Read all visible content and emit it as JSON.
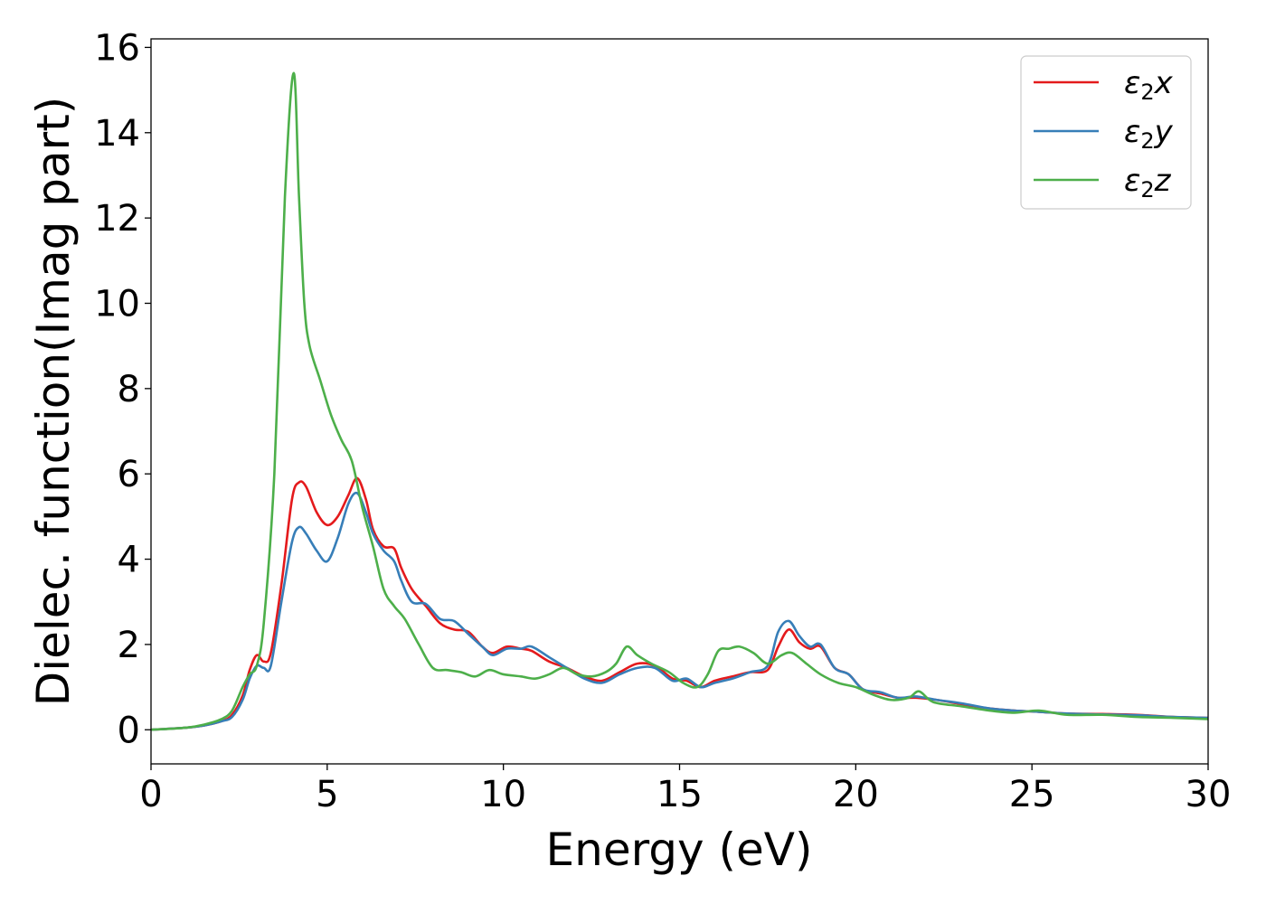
{
  "chart_data": {
    "type": "line",
    "title": "",
    "xlabel": "Energy (eV)",
    "ylabel": "Dielec. function(Imag part)",
    "xlim": [
      0,
      30
    ],
    "ylim": [
      -0.8,
      16.2
    ],
    "xticks": [
      0,
      5,
      10,
      15,
      20,
      25,
      30
    ],
    "yticks": [
      0,
      2,
      4,
      6,
      8,
      10,
      12,
      14,
      16
    ],
    "grid": false,
    "legend_position": "top-right",
    "series": [
      {
        "name": "ε₂x",
        "legend_base": "ε",
        "legend_sub": "2",
        "legend_suffix": "x",
        "color": "#e41a1c",
        "points": [
          [
            0,
            0
          ],
          [
            1,
            0.05
          ],
          [
            1.5,
            0.1
          ],
          [
            2,
            0.2
          ],
          [
            2.3,
            0.35
          ],
          [
            2.6,
            0.8
          ],
          [
            2.8,
            1.4
          ],
          [
            3,
            1.75
          ],
          [
            3.2,
            1.6
          ],
          [
            3.4,
            1.8
          ],
          [
            3.7,
            3.4
          ],
          [
            4,
            5.4
          ],
          [
            4.2,
            5.8
          ],
          [
            4.4,
            5.7
          ],
          [
            4.7,
            5.1
          ],
          [
            5,
            4.8
          ],
          [
            5.3,
            5.0
          ],
          [
            5.6,
            5.5
          ],
          [
            5.85,
            5.9
          ],
          [
            6.1,
            5.4
          ],
          [
            6.3,
            4.7
          ],
          [
            6.6,
            4.3
          ],
          [
            6.9,
            4.25
          ],
          [
            7.1,
            3.8
          ],
          [
            7.4,
            3.3
          ],
          [
            7.8,
            2.9
          ],
          [
            8.2,
            2.5
          ],
          [
            8.6,
            2.35
          ],
          [
            9,
            2.3
          ],
          [
            9.4,
            1.95
          ],
          [
            9.7,
            1.8
          ],
          [
            10.1,
            1.95
          ],
          [
            10.5,
            1.9
          ],
          [
            10.8,
            1.85
          ],
          [
            11.3,
            1.6
          ],
          [
            11.8,
            1.45
          ],
          [
            12.3,
            1.25
          ],
          [
            12.8,
            1.15
          ],
          [
            13.3,
            1.35
          ],
          [
            13.8,
            1.55
          ],
          [
            14.3,
            1.5
          ],
          [
            14.8,
            1.2
          ],
          [
            15.2,
            1.15
          ],
          [
            15.6,
            1.0
          ],
          [
            16,
            1.15
          ],
          [
            16.5,
            1.25
          ],
          [
            17,
            1.35
          ],
          [
            17.5,
            1.4
          ],
          [
            17.8,
            1.95
          ],
          [
            18.1,
            2.35
          ],
          [
            18.4,
            2.05
          ],
          [
            18.7,
            1.9
          ],
          [
            19,
            1.95
          ],
          [
            19.4,
            1.45
          ],
          [
            19.8,
            1.3
          ],
          [
            20.2,
            0.95
          ],
          [
            20.7,
            0.85
          ],
          [
            21.2,
            0.75
          ],
          [
            21.7,
            0.75
          ],
          [
            22.3,
            0.7
          ],
          [
            23,
            0.6
          ],
          [
            23.8,
            0.5
          ],
          [
            24.5,
            0.45
          ],
          [
            25.2,
            0.42
          ],
          [
            26,
            0.38
          ],
          [
            27,
            0.37
          ],
          [
            28,
            0.35
          ],
          [
            29,
            0.3
          ],
          [
            30,
            0.28
          ]
        ]
      },
      {
        "name": "ε₂y",
        "legend_base": "ε",
        "legend_sub": "2",
        "legend_suffix": "y",
        "color": "#377eb8",
        "points": [
          [
            0,
            0
          ],
          [
            1,
            0.05
          ],
          [
            1.5,
            0.1
          ],
          [
            2,
            0.2
          ],
          [
            2.3,
            0.3
          ],
          [
            2.6,
            0.7
          ],
          [
            2.8,
            1.2
          ],
          [
            3,
            1.5
          ],
          [
            3.2,
            1.45
          ],
          [
            3.4,
            1.5
          ],
          [
            3.7,
            3.0
          ],
          [
            4,
            4.4
          ],
          [
            4.2,
            4.75
          ],
          [
            4.4,
            4.6
          ],
          [
            4.7,
            4.2
          ],
          [
            5,
            3.95
          ],
          [
            5.3,
            4.5
          ],
          [
            5.6,
            5.3
          ],
          [
            5.85,
            5.55
          ],
          [
            6.1,
            5.1
          ],
          [
            6.3,
            4.6
          ],
          [
            6.6,
            4.2
          ],
          [
            6.9,
            3.95
          ],
          [
            7.1,
            3.5
          ],
          [
            7.4,
            3.0
          ],
          [
            7.8,
            2.95
          ],
          [
            8.2,
            2.6
          ],
          [
            8.6,
            2.55
          ],
          [
            9,
            2.25
          ],
          [
            9.4,
            1.95
          ],
          [
            9.7,
            1.75
          ],
          [
            10.1,
            1.9
          ],
          [
            10.5,
            1.9
          ],
          [
            10.8,
            1.95
          ],
          [
            11.3,
            1.7
          ],
          [
            11.8,
            1.45
          ],
          [
            12.3,
            1.2
          ],
          [
            12.8,
            1.1
          ],
          [
            13.3,
            1.3
          ],
          [
            13.8,
            1.45
          ],
          [
            14.3,
            1.45
          ],
          [
            14.8,
            1.15
          ],
          [
            15.2,
            1.2
          ],
          [
            15.6,
            1.0
          ],
          [
            16,
            1.1
          ],
          [
            16.5,
            1.2
          ],
          [
            17,
            1.35
          ],
          [
            17.5,
            1.5
          ],
          [
            17.8,
            2.3
          ],
          [
            18.1,
            2.55
          ],
          [
            18.4,
            2.2
          ],
          [
            18.7,
            1.95
          ],
          [
            19,
            2.0
          ],
          [
            19.4,
            1.45
          ],
          [
            19.8,
            1.3
          ],
          [
            20.2,
            0.95
          ],
          [
            20.7,
            0.88
          ],
          [
            21.2,
            0.75
          ],
          [
            21.7,
            0.78
          ],
          [
            22.3,
            0.7
          ],
          [
            23,
            0.62
          ],
          [
            23.8,
            0.5
          ],
          [
            24.5,
            0.45
          ],
          [
            25.2,
            0.42
          ],
          [
            26,
            0.38
          ],
          [
            27,
            0.36
          ],
          [
            28,
            0.34
          ],
          [
            29,
            0.3
          ],
          [
            30,
            0.28
          ]
        ]
      },
      {
        "name": "ε₂z",
        "legend_base": "ε",
        "legend_sub": "2",
        "legend_suffix": "z",
        "color": "#4daf4a",
        "points": [
          [
            0,
            0
          ],
          [
            1,
            0.05
          ],
          [
            1.5,
            0.12
          ],
          [
            2,
            0.25
          ],
          [
            2.3,
            0.45
          ],
          [
            2.6,
            1.0
          ],
          [
            2.8,
            1.3
          ],
          [
            3,
            1.5
          ],
          [
            3.2,
            2.5
          ],
          [
            3.5,
            6.0
          ],
          [
            3.8,
            12.5
          ],
          [
            4.05,
            15.4
          ],
          [
            4.2,
            12.5
          ],
          [
            4.35,
            10.0
          ],
          [
            4.5,
            9.0
          ],
          [
            4.8,
            8.2
          ],
          [
            5.1,
            7.4
          ],
          [
            5.4,
            6.8
          ],
          [
            5.7,
            6.3
          ],
          [
            6,
            5.2
          ],
          [
            6.3,
            4.3
          ],
          [
            6.6,
            3.3
          ],
          [
            6.9,
            2.9
          ],
          [
            7.2,
            2.6
          ],
          [
            7.6,
            2.0
          ],
          [
            8,
            1.45
          ],
          [
            8.4,
            1.4
          ],
          [
            8.8,
            1.35
          ],
          [
            9.2,
            1.25
          ],
          [
            9.6,
            1.4
          ],
          [
            10,
            1.3
          ],
          [
            10.5,
            1.25
          ],
          [
            10.9,
            1.2
          ],
          [
            11.3,
            1.3
          ],
          [
            11.7,
            1.45
          ],
          [
            12.1,
            1.3
          ],
          [
            12.5,
            1.25
          ],
          [
            12.9,
            1.35
          ],
          [
            13.2,
            1.55
          ],
          [
            13.5,
            1.95
          ],
          [
            13.8,
            1.75
          ],
          [
            14.2,
            1.55
          ],
          [
            14.7,
            1.35
          ],
          [
            15.1,
            1.1
          ],
          [
            15.5,
            1.0
          ],
          [
            15.8,
            1.3
          ],
          [
            16.1,
            1.85
          ],
          [
            16.4,
            1.9
          ],
          [
            16.7,
            1.95
          ],
          [
            17.1,
            1.8
          ],
          [
            17.5,
            1.55
          ],
          [
            17.9,
            1.75
          ],
          [
            18.2,
            1.8
          ],
          [
            18.6,
            1.55
          ],
          [
            19,
            1.3
          ],
          [
            19.5,
            1.1
          ],
          [
            20,
            1.0
          ],
          [
            20.5,
            0.82
          ],
          [
            21,
            0.7
          ],
          [
            21.5,
            0.75
          ],
          [
            21.8,
            0.9
          ],
          [
            22.2,
            0.65
          ],
          [
            23,
            0.55
          ],
          [
            23.8,
            0.45
          ],
          [
            24.5,
            0.4
          ],
          [
            25.2,
            0.45
          ],
          [
            26,
            0.35
          ],
          [
            27,
            0.35
          ],
          [
            28,
            0.3
          ],
          [
            29,
            0.28
          ],
          [
            30,
            0.25
          ]
        ]
      }
    ]
  }
}
